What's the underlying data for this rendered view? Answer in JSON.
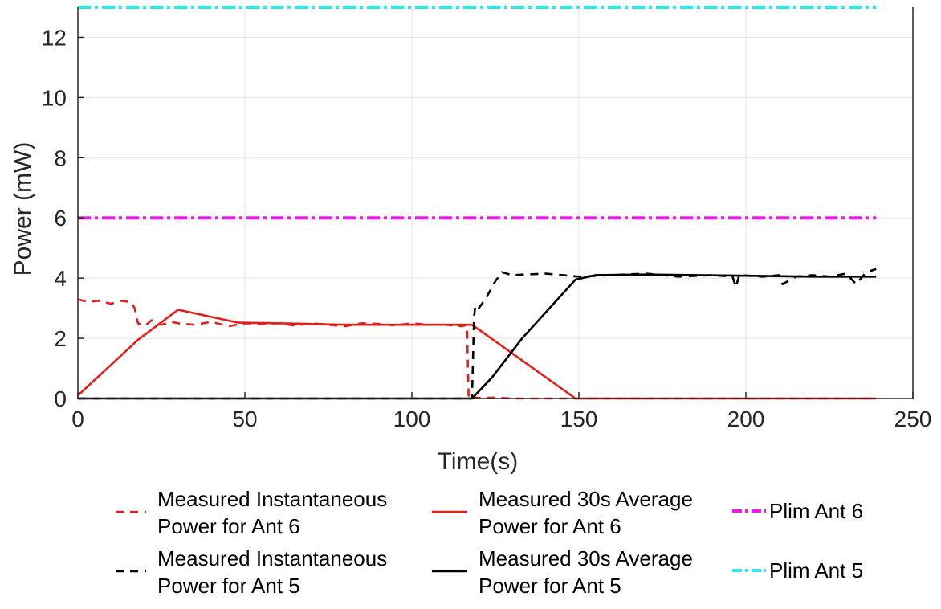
{
  "chart_data": {
    "type": "line",
    "title": "",
    "xlabel": "Time(s)",
    "ylabel": "Power (mW)",
    "xlim": [
      0,
      250
    ],
    "ylim": [
      0,
      13
    ],
    "xticks": [
      0,
      50,
      100,
      150,
      200,
      250
    ],
    "yticks": [
      0,
      2,
      4,
      6,
      8,
      10,
      12
    ],
    "grid": true,
    "legend_position": "bottom",
    "series": [
      {
        "name": "Measured Instantaneous Power for Ant 6",
        "color": "#e0201b",
        "style": "dashed",
        "x": [
          0,
          3,
          6,
          10,
          13,
          16,
          17,
          18,
          20,
          22,
          25,
          28,
          30,
          35,
          40,
          45,
          50,
          55,
          60,
          65,
          70,
          75,
          80,
          85,
          90,
          95,
          100,
          105,
          110,
          115,
          116.5,
          117,
          117.5,
          120,
          125,
          130,
          140,
          150,
          160,
          170,
          180,
          190,
          200,
          210,
          220,
          230,
          239
        ],
        "y": [
          3.3,
          3.2,
          3.25,
          3.15,
          3.25,
          3.2,
          3.0,
          2.5,
          2.4,
          2.6,
          2.45,
          2.55,
          2.5,
          2.45,
          2.55,
          2.4,
          2.5,
          2.48,
          2.5,
          2.42,
          2.5,
          2.45,
          2.4,
          2.5,
          2.48,
          2.43,
          2.5,
          2.45,
          2.45,
          2.4,
          2.45,
          0.0,
          0.05,
          0.02,
          0.03,
          0.0,
          0.0,
          0.0,
          0.0,
          0.0,
          0.0,
          0.0,
          0.0,
          0.0,
          0.0,
          0.0,
          0.0
        ]
      },
      {
        "name": "Measured 30s Average Power for Ant 6",
        "color": "#e0201b",
        "style": "solid",
        "x": [
          0,
          18,
          30,
          48,
          60,
          80,
          100,
          118,
          149,
          175,
          200,
          239
        ],
        "y": [
          0.1,
          1.95,
          2.95,
          2.52,
          2.5,
          2.45,
          2.45,
          2.45,
          0.0,
          0.0,
          0.0,
          0.0
        ]
      },
      {
        "name": "Measured Instantaneous Power for Ant 5",
        "color": "#000000",
        "style": "dashed",
        "x": [
          0,
          50,
          100,
          118,
          118.6,
          119,
          120,
          122,
          125,
          127,
          130,
          140,
          150,
          160,
          170,
          180,
          190,
          196,
          197,
          198,
          205,
          210,
          211,
          215,
          220,
          225,
          230,
          233,
          236,
          239
        ],
        "y": [
          0,
          0,
          0,
          0,
          2.7,
          3.1,
          3.0,
          3.3,
          3.9,
          4.2,
          4.1,
          4.15,
          4.05,
          4.1,
          4.15,
          4.05,
          4.1,
          4.05,
          3.7,
          4.1,
          4.05,
          4.1,
          3.8,
          4.05,
          4.1,
          4.05,
          4.15,
          3.8,
          4.2,
          4.3
        ]
      },
      {
        "name": "Measured 30s Average Power for Ant 5",
        "color": "#000000",
        "style": "solid",
        "x": [
          0,
          50,
          100,
          118,
          124,
          133,
          149,
          155,
          170,
          200,
          220,
          239
        ],
        "y": [
          0,
          0,
          0,
          0,
          0.7,
          2.0,
          3.95,
          4.1,
          4.12,
          4.08,
          4.05,
          4.05
        ]
      },
      {
        "name": "Plim Ant 6",
        "color": "#e81ee8",
        "style": "dashdot",
        "x": [
          0,
          239
        ],
        "y": [
          6,
          6
        ]
      },
      {
        "name": "Plim Ant 5",
        "color": "#2ee8e8",
        "style": "dashdot",
        "x": [
          0,
          239
        ],
        "y": [
          13,
          13
        ]
      }
    ],
    "legend": {
      "columns": [
        [
          {
            "series": 0,
            "lines": [
              "Measured Instantaneous",
              "Power for Ant 6"
            ]
          },
          {
            "series": 2,
            "lines": [
              "Measured Instantaneous",
              "Power for Ant 5"
            ]
          }
        ],
        [
          {
            "series": 1,
            "lines": [
              "Measured 30s Average",
              "Power for Ant 6"
            ]
          },
          {
            "series": 3,
            "lines": [
              "Measured 30s Average",
              "Power for Ant 5"
            ]
          }
        ],
        [
          {
            "series": 4,
            "lines": [
              "Plim Ant 6"
            ]
          },
          {
            "series": 5,
            "lines": [
              "Plim Ant 5"
            ]
          }
        ]
      ]
    }
  }
}
